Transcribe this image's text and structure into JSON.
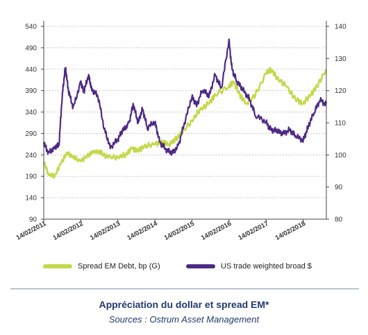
{
  "chart_data": {
    "type": "line",
    "title": "",
    "left_axis": {
      "ticks": [
        90,
        140,
        190,
        240,
        290,
        340,
        390,
        440,
        490,
        540
      ],
      "range": [
        90,
        540
      ]
    },
    "right_axis": {
      "ticks": [
        80,
        90,
        100,
        110,
        120,
        130,
        140
      ],
      "range": [
        80,
        140
      ]
    },
    "x_axis": {
      "ticks": [
        "14/02/2011",
        "14/02/2012",
        "14/02/2013",
        "14/02/2014",
        "14/02/2015",
        "14/02/2016",
        "14/02/2017",
        "14/02/2018"
      ],
      "range": [
        "2011-02-14",
        "2018-10-01"
      ]
    },
    "grid": "horizontal dotted",
    "legend_placement": "bottom",
    "series": [
      {
        "name": "Spread EM Debt, bp (G)",
        "axis": "left",
        "color": "#c5d84a",
        "points": [
          [
            "2011-02-14",
            225
          ],
          [
            "2011-04-01",
            195
          ],
          [
            "2011-06-01",
            190
          ],
          [
            "2011-08-01",
            220
          ],
          [
            "2011-10-01",
            245
          ],
          [
            "2011-12-01",
            235
          ],
          [
            "2012-02-14",
            225
          ],
          [
            "2012-05-01",
            240
          ],
          [
            "2012-07-01",
            250
          ],
          [
            "2012-09-01",
            245
          ],
          [
            "2012-11-01",
            235
          ],
          [
            "2013-02-14",
            235
          ],
          [
            "2013-05-01",
            240
          ],
          [
            "2013-07-01",
            255
          ],
          [
            "2013-09-01",
            250
          ],
          [
            "2013-11-01",
            260
          ],
          [
            "2014-02-14",
            265
          ],
          [
            "2014-05-01",
            270
          ],
          [
            "2014-07-01",
            265
          ],
          [
            "2014-09-01",
            275
          ],
          [
            "2014-11-01",
            290
          ],
          [
            "2015-02-14",
            320
          ],
          [
            "2015-05-01",
            345
          ],
          [
            "2015-08-01",
            360
          ],
          [
            "2015-10-01",
            380
          ],
          [
            "2016-02-14",
            400
          ],
          [
            "2016-04-01",
            410
          ],
          [
            "2016-06-01",
            380
          ],
          [
            "2016-08-01",
            360
          ],
          [
            "2016-11-01",
            380
          ],
          [
            "2017-02-14",
            430
          ],
          [
            "2017-04-01",
            440
          ],
          [
            "2017-06-01",
            420
          ],
          [
            "2017-09-01",
            400
          ],
          [
            "2017-12-01",
            370
          ],
          [
            "2018-02-14",
            360
          ],
          [
            "2018-05-01",
            380
          ],
          [
            "2018-07-01",
            400
          ],
          [
            "2018-10-01",
            440
          ]
        ]
      },
      {
        "name": "US trade weighted broad $",
        "axis": "right",
        "color": "#4e2a84",
        "points": [
          [
            "2011-02-14",
            104
          ],
          [
            "2011-04-01",
            101
          ],
          [
            "2011-06-01",
            102
          ],
          [
            "2011-07-15",
            103
          ],
          [
            "2011-08-15",
            118
          ],
          [
            "2011-09-15",
            127
          ],
          [
            "2011-10-15",
            120
          ],
          [
            "2011-12-01",
            115
          ],
          [
            "2012-02-14",
            123
          ],
          [
            "2012-03-15",
            120
          ],
          [
            "2012-05-01",
            125
          ],
          [
            "2012-06-01",
            120
          ],
          [
            "2012-08-01",
            118
          ],
          [
            "2012-10-01",
            108
          ],
          [
            "2012-12-01",
            102
          ],
          [
            "2013-02-14",
            105
          ],
          [
            "2013-04-01",
            108
          ],
          [
            "2013-06-01",
            110
          ],
          [
            "2013-07-15",
            116
          ],
          [
            "2013-09-01",
            110
          ],
          [
            "2013-10-15",
            114
          ],
          [
            "2013-12-01",
            108
          ],
          [
            "2014-02-14",
            110
          ],
          [
            "2014-04-01",
            104
          ],
          [
            "2014-06-01",
            102
          ],
          [
            "2014-08-01",
            101
          ],
          [
            "2014-10-01",
            103
          ],
          [
            "2014-12-01",
            110
          ],
          [
            "2015-02-14",
            118
          ],
          [
            "2015-04-01",
            115
          ],
          [
            "2015-06-01",
            120
          ],
          [
            "2015-08-01",
            118
          ],
          [
            "2015-10-01",
            125
          ],
          [
            "2015-12-01",
            121
          ],
          [
            "2016-02-14",
            136
          ],
          [
            "2016-03-15",
            127
          ],
          [
            "2016-05-01",
            123
          ],
          [
            "2016-07-01",
            120
          ],
          [
            "2016-09-01",
            117
          ],
          [
            "2016-11-01",
            112
          ],
          [
            "2017-02-14",
            110
          ],
          [
            "2017-04-01",
            108
          ],
          [
            "2017-06-01",
            108
          ],
          [
            "2017-08-01",
            107
          ],
          [
            "2017-10-01",
            108
          ],
          [
            "2017-12-01",
            106
          ],
          [
            "2018-02-14",
            104
          ],
          [
            "2018-04-01",
            108
          ],
          [
            "2018-06-01",
            113
          ],
          [
            "2018-08-01",
            117
          ],
          [
            "2018-10-01",
            116
          ]
        ]
      }
    ]
  },
  "legend": {
    "green_label": "Spread EM Debt, bp (G)",
    "purple_label": "US trade weighted broad $"
  },
  "caption": {
    "title": "Appréciation du dollar et spread EM*",
    "subtitle": "Sources : Ostrum Asset Management"
  }
}
